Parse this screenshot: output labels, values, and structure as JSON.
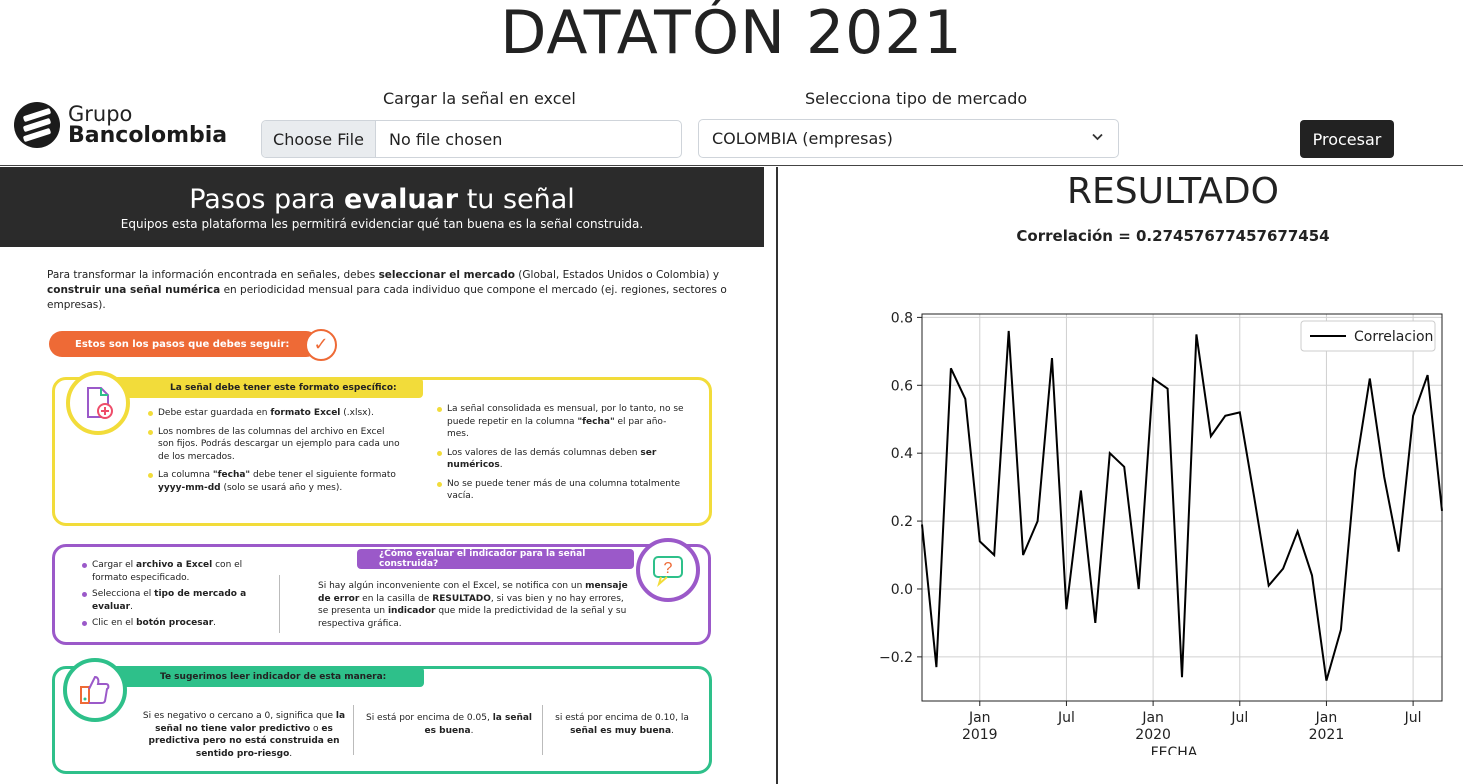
{
  "page_title": "DATATÓN 2021",
  "logo": {
    "line1": "Grupo",
    "line2": "Bancolombia"
  },
  "upload": {
    "label": "Cargar la señal en excel",
    "button": "Choose File",
    "status": "No file chosen"
  },
  "market": {
    "label": "Selecciona tipo de mercado",
    "selected": "COLOMBIA (empresas)"
  },
  "process_button": "Procesar",
  "steps_panel": {
    "title_pre": "Pasos para ",
    "title_bold": "evaluar",
    "title_post": " tu señal",
    "subtitle": "Equipos esta plataforma les permitirá evidenciar qué tan buena es la señal construida.",
    "intro": {
      "t1": "Para transformar la información encontrada en señales, debes ",
      "b1": "seleccionar el mercado",
      "t2": " (Global, Estados Unidos o Colombia) y ",
      "b2": "construir una señal numérica",
      "t3": " en periodicidad mensual para cada individuo que compone el mercado (ej. regiones, sectores o empresas)."
    },
    "steps_pill": "Estos son los pasos que debes seguir:",
    "format_card": {
      "title": "La señal debe tener este formato específico:",
      "left": [
        {
          "t": "Debe estar guardada en ",
          "b": "formato Excel",
          "t2": " (.xlsx)."
        },
        {
          "t": "Los nombres de las columnas del archivo en Excel son fijos. Podrás descargar un ejemplo para cada uno de los mercados.",
          "b": "",
          "t2": ""
        },
        {
          "t": "La columna ",
          "b": "\"fecha\"",
          "t2": " debe tener el siguiente formato ",
          "b2": "yyyy-mm-dd",
          "t3": " (solo se usará año y mes)."
        }
      ],
      "right": [
        {
          "t": "La señal consolidada es mensual, por lo tanto, no se puede repetir en la columna ",
          "b": "\"fecha\"",
          "t2": " el par año-mes."
        },
        {
          "t": "Los valores de las demás columnas deben ",
          "b": "ser numéricos",
          "t2": "."
        },
        {
          "t": "No se puede tener más de una columna totalmente vacía.",
          "b": "",
          "t2": ""
        }
      ]
    },
    "evaluate_card": {
      "title": "¿Cómo evaluar el indicador para la señal construida?",
      "steps": [
        {
          "t": "Cargar el ",
          "b": "archivo a Excel",
          "t2": " con el formato especificado."
        },
        {
          "t": "Selecciona el ",
          "b": "tipo de mercado a evaluar",
          "t2": "."
        },
        {
          "t": "Clic en el ",
          "b": "botón procesar",
          "t2": "."
        }
      ],
      "note": {
        "t1": "Si hay algún inconveniente con el Excel, se notifica con un ",
        "b1": "mensaje de error",
        "t2": " en la casilla de ",
        "b2": "RESULTADO",
        "t3": ", si vas bien y no hay errores, se presenta un ",
        "b3": "indicador",
        "t4": " que mide la predictividad de la señal y su respectiva gráfica."
      }
    },
    "read_card": {
      "title": "Te sugerimos leer indicador de esta manera:",
      "c1": {
        "t1": "Si es negativo o cercano a 0, significa que ",
        "b1": "la señal no tiene valor predictivo",
        "t2": " o ",
        "b2": "es predictiva pero no está construida en sentido pro-riesgo",
        "t3": "."
      },
      "c2": {
        "t1": "Si está por encima de 0.05, ",
        "b1": "la señal es buena",
        "t2": "."
      },
      "c3": {
        "t1": "si está por encima de 0.10, la ",
        "b1": "señal es muy buena",
        "t2": "."
      }
    }
  },
  "result": {
    "title": "RESULTADO",
    "correlation": "Correlación = 0.27457677457677454"
  },
  "chart_data": {
    "type": "line",
    "legend": [
      "Correlacion"
    ],
    "legend_position": "top-right",
    "xlabel": "FECHA",
    "ylabel": "",
    "ylim": [
      -0.33,
      0.81
    ],
    "grid": true,
    "yticks": [
      "0.8",
      "0.6",
      "0.4",
      "0.2",
      "0.0",
      "−0.2"
    ],
    "ytick_values": [
      0.8,
      0.6,
      0.4,
      0.2,
      0.0,
      -0.2
    ],
    "xticks": [
      {
        "date": "2019-01",
        "month": "Jan",
        "year": "2019"
      },
      {
        "date": "2019-07",
        "month": "Jul",
        "year": ""
      },
      {
        "date": "2020-01",
        "month": "Jan",
        "year": "2020"
      },
      {
        "date": "2020-07",
        "month": "Jul",
        "year": ""
      },
      {
        "date": "2021-01",
        "month": "Jan",
        "year": "2021"
      },
      {
        "date": "2021-07",
        "month": "Jul",
        "year": ""
      }
    ],
    "xlim": [
      "2018-09",
      "2021-09"
    ],
    "series": [
      {
        "name": "Correlacion",
        "color": "#000000",
        "x": [
          "2018-09",
          "2018-10",
          "2018-11",
          "2018-12",
          "2019-01",
          "2019-02",
          "2019-03",
          "2019-04",
          "2019-05",
          "2019-06",
          "2019-07",
          "2019-08",
          "2019-09",
          "2019-10",
          "2019-11",
          "2019-12",
          "2020-01",
          "2020-02",
          "2020-03",
          "2020-04",
          "2020-05",
          "2020-06",
          "2020-07",
          "2020-08",
          "2020-09",
          "2020-10",
          "2020-11",
          "2020-12",
          "2021-01",
          "2021-02",
          "2021-03",
          "2021-04",
          "2021-05",
          "2021-06",
          "2021-07",
          "2021-08",
          "2021-09"
        ],
        "values": [
          0.19,
          -0.23,
          0.65,
          0.56,
          0.14,
          0.1,
          0.76,
          0.1,
          0.2,
          0.68,
          -0.06,
          0.29,
          -0.1,
          0.4,
          0.36,
          0.0,
          0.62,
          0.59,
          -0.26,
          0.75,
          0.45,
          0.51,
          0.52,
          0.27,
          0.01,
          0.06,
          0.17,
          0.04,
          -0.27,
          -0.12,
          0.35,
          0.62,
          0.33,
          0.11,
          0.51,
          0.63,
          0.23
        ]
      }
    ]
  },
  "colors": {
    "dark": "#2b2b2b",
    "orange": "#ee6a36",
    "yellow": "#f2dc3a",
    "purple": "#9b59c9",
    "green": "#2ec08a"
  },
  "icons": [
    "file-add-icon",
    "question-chat-icon",
    "thumbs-up-icon",
    "checkmark-icon",
    "chevron-down-icon"
  ]
}
